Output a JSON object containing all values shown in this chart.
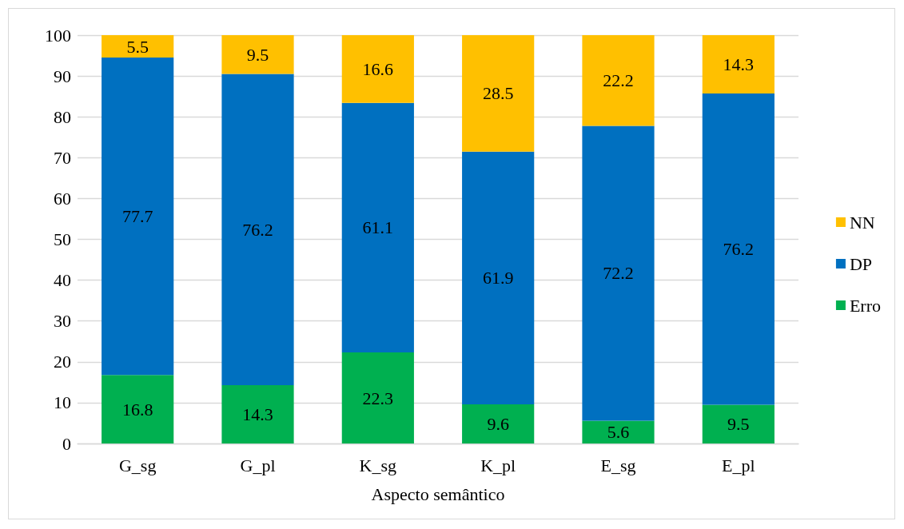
{
  "chart_data": {
    "type": "bar",
    "xlabel": "Aspecto semântico",
    "categories": [
      "G_sg",
      "G_pl",
      "K_sg",
      "K_pl",
      "E_sg",
      "E_pl"
    ],
    "series": [
      {
        "name": "Erro",
        "color": "#00b050",
        "values": [
          16.8,
          14.3,
          22.3,
          9.6,
          5.6,
          9.5
        ]
      },
      {
        "name": "DP",
        "color": "#0070c0",
        "values": [
          77.7,
          76.2,
          61.1,
          61.9,
          72.2,
          76.2
        ]
      },
      {
        "name": "NN",
        "color": "#ffc000",
        "values": [
          5.5,
          9.5,
          16.6,
          28.5,
          22.2,
          14.3
        ]
      }
    ],
    "stacked": true,
    "ylim": [
      0,
      100
    ],
    "yticks": [
      0,
      10,
      20,
      30,
      40,
      50,
      60,
      70,
      80,
      90,
      100
    ],
    "grid": "y",
    "legend": "right",
    "data_labels": true
  }
}
